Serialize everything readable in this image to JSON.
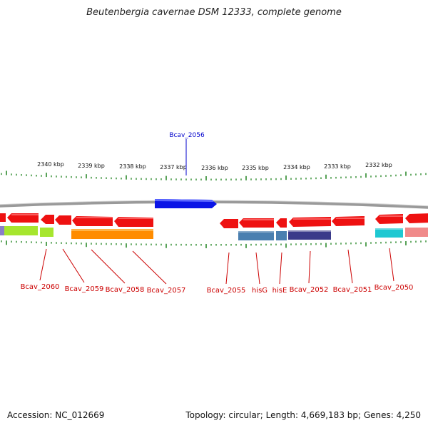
{
  "title": "Beutenbergia cavernae DSM 12333, complete genome",
  "footer": {
    "accession": "Accession: NC_012669",
    "topology": "Topology: circular; Length: 4,669,183 bp; Genes: 4,250"
  },
  "scale_labels": [
    "2340 kbp",
    "2339 kbp",
    "2338 kbp",
    "2337 kbp",
    "2336 kbp",
    "2335 kbp",
    "2334 kbp",
    "2333 kbp",
    "2332 kbp"
  ],
  "highlighted_gene": {
    "label": "Bcav_2056",
    "color": "#0000cc"
  },
  "gene_labels": [
    "Bcav_2060",
    "Bcav_2059",
    "Bcav_2058",
    "Bcav_2057",
    "Bcav_2055",
    "hisG",
    "hisE",
    "Bcav_2052",
    "Bcav_2051",
    "Bcav_2050"
  ],
  "colors": {
    "backbone": "#999999",
    "tick": "#2e8b2e",
    "cds_strand": "#ee1111",
    "label_red": "#cc0000",
    "highlight_blue": "#0a14e6",
    "lime": "#a6e62e",
    "orange": "#ff8c00",
    "steel_blue": "#4a7fb0",
    "indigo": "#3a3a8a",
    "cyan": "#1ec8d2",
    "pink": "#f08a8a"
  }
}
